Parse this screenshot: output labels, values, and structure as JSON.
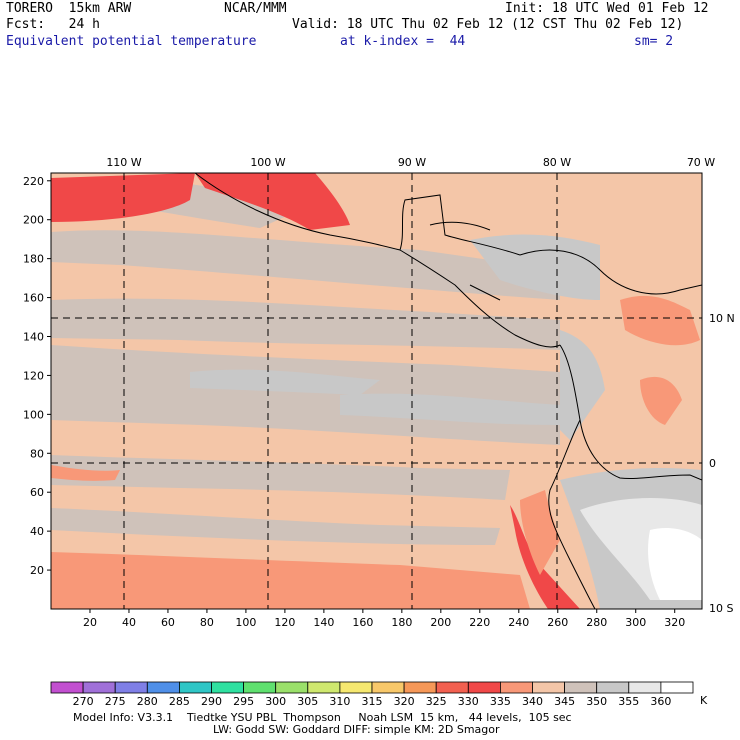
{
  "header": {
    "model": "TORERO  15km ARW",
    "org": "NCAR/MMM",
    "init": "Init: 18 UTC Wed 01 Feb 12",
    "fcst": "Fcst:   24 h",
    "valid": "Valid: 18 UTC Thu 02 Feb 12 (12 CST Thu 02 Feb 12)",
    "field": "Equivalent potential temperature",
    "level": "at k-index =  44",
    "smooth": "sm= 2"
  },
  "map": {
    "lon_labels": [
      "110 W",
      "100 W",
      "90 W",
      "80 W",
      "70 W"
    ],
    "lat_labels": [
      "10 N",
      "0",
      "10 S"
    ],
    "y_ticks": [
      20,
      40,
      60,
      80,
      100,
      120,
      140,
      160,
      180,
      200,
      220
    ],
    "x_ticks": [
      20,
      40,
      60,
      80,
      100,
      120,
      140,
      160,
      180,
      200,
      220,
      240,
      260,
      280,
      300,
      320
    ]
  },
  "colorbar": {
    "unit": "K",
    "labels": [
      "270",
      "275",
      "280",
      "285",
      "290",
      "295",
      "300",
      "305",
      "310",
      "315",
      "320",
      "325",
      "330",
      "335",
      "340",
      "345",
      "350",
      "355",
      "360"
    ],
    "colors": [
      "#c24fd0",
      "#a070d8",
      "#7f7fe6",
      "#4f8fe8",
      "#2fc6c6",
      "#2fe0a0",
      "#5fe06f",
      "#9ae06a",
      "#cfe86f",
      "#f6e870",
      "#f8c86a",
      "#f69858",
      "#f26050",
      "#f04848",
      "#f89878",
      "#f4c6a8",
      "#cfc2ba",
      "#c8c8c8",
      "#e8e8e8",
      "#ffffff"
    ]
  },
  "footer": {
    "line1": "Model Info: V3.3.1    Tiedtke YSU PBL  Thompson     Noah LSM  15 km,   44 levels,  105 sec",
    "line2": "LW: Godd SW: Goddard DIFF: simple KM: 2D Smagor"
  }
}
